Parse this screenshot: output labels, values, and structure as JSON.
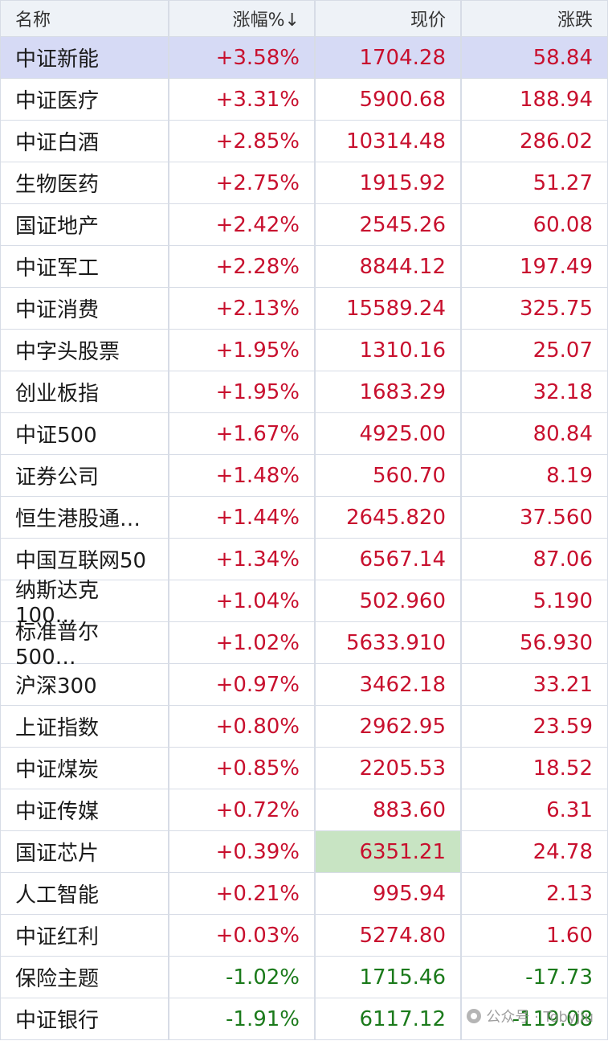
{
  "header": {
    "name": "名称",
    "change_pct": "涨幅%↓",
    "price": "现价",
    "change": "涨跌"
  },
  "rows": [
    {
      "name": "中证新能",
      "pct": "+3.58%",
      "price": "1704.28",
      "change": "58.84"
    },
    {
      "name": "中证医疗",
      "pct": "+3.31%",
      "price": "5900.68",
      "change": "188.94"
    },
    {
      "name": "中证白酒",
      "pct": "+2.85%",
      "price": "10314.48",
      "change": "286.02"
    },
    {
      "name": "生物医药",
      "pct": "+2.75%",
      "price": "1915.92",
      "change": "51.27"
    },
    {
      "name": "国证地产",
      "pct": "+2.42%",
      "price": "2545.26",
      "change": "60.08"
    },
    {
      "name": "中证军工",
      "pct": "+2.28%",
      "price": "8844.12",
      "change": "197.49"
    },
    {
      "name": "中证消费",
      "pct": "+2.13%",
      "price": "15589.24",
      "change": "325.75"
    },
    {
      "name": "中字头股票",
      "pct": "+1.95%",
      "price": "1310.16",
      "change": "25.07"
    },
    {
      "name": "创业板指",
      "pct": "+1.95%",
      "price": "1683.29",
      "change": "32.18"
    },
    {
      "name": "中证500",
      "pct": "+1.67%",
      "price": "4925.00",
      "change": "80.84"
    },
    {
      "name": "证券公司",
      "pct": "+1.48%",
      "price": "560.70",
      "change": "8.19"
    },
    {
      "name": "恒生港股通…",
      "pct": "+1.44%",
      "price": "2645.820",
      "change": "37.560"
    },
    {
      "name": "中国互联网50",
      "pct": "+1.34%",
      "price": "6567.14",
      "change": "87.06"
    },
    {
      "name": "纳斯达克100…",
      "pct": "+1.04%",
      "price": "502.960",
      "change": "5.190"
    },
    {
      "name": "标准普尔500…",
      "pct": "+1.02%",
      "price": "5633.910",
      "change": "56.930"
    },
    {
      "name": "沪深300",
      "pct": "+0.97%",
      "price": "3462.18",
      "change": "33.21"
    },
    {
      "name": "上证指数",
      "pct": "+0.80%",
      "price": "2962.95",
      "change": "23.59"
    },
    {
      "name": "中证煤炭",
      "pct": "+0.85%",
      "price": "2205.53",
      "change": "18.52"
    },
    {
      "name": "中证传媒",
      "pct": "+0.72%",
      "price": "883.60",
      "change": "6.31"
    },
    {
      "name": "国证芯片",
      "pct": "+0.39%",
      "price": "6351.21",
      "change": "24.78"
    },
    {
      "name": "人工智能",
      "pct": "+0.21%",
      "price": "995.94",
      "change": "2.13"
    },
    {
      "name": "中证红利",
      "pct": "+0.03%",
      "price": "5274.80",
      "change": "1.60"
    },
    {
      "name": "保险主题",
      "pct": "-1.02%",
      "price": "1715.46",
      "change": "-17.73"
    },
    {
      "name": "中证银行",
      "pct": "-1.91%",
      "price": "6117.12",
      "change": "-119.08"
    }
  ],
  "watermark": "公众号 · Tobyjiu",
  "colors": {
    "up": "#c8102e",
    "down": "#1b7a1b",
    "selected_row": "#d6daf5",
    "highlight_cell": "#c8e4c3"
  }
}
